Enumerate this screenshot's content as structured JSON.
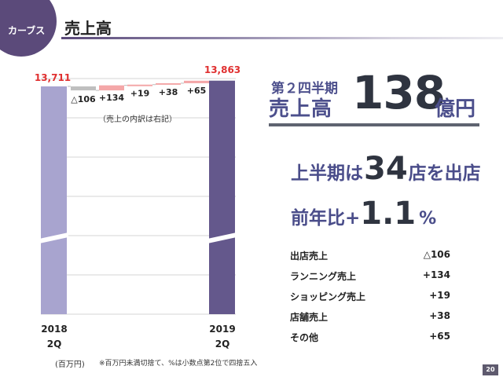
{
  "header": {
    "badge": "カーブス",
    "title": "売上高"
  },
  "chart_data": {
    "type": "bar",
    "subtype": "waterfall",
    "unit_note": "(百万円)",
    "footnote": "※百万円未満切捨て、%は小数点第2位で四捨五入",
    "inner_note": "（売上の内訳は右記）",
    "axis_break": true,
    "grid": true,
    "start": {
      "label_top": "2018",
      "label_bottom": "2Q",
      "value": 13711,
      "display": "13,711",
      "color": "#a8a4cf"
    },
    "end": {
      "label_top": "2019",
      "label_bottom": "2Q",
      "value": 13863,
      "display": "13,863",
      "color": "#64588c"
    },
    "steps": [
      {
        "label": "△106",
        "value": -106,
        "color": "#bfbfbf"
      },
      {
        "label": "+134",
        "value": 134,
        "color": "#f4a7a8"
      },
      {
        "label": "+19",
        "value": 19,
        "color": "#f4a7a8"
      },
      {
        "label": "+38",
        "value": 38,
        "color": "#f4a7a8"
      },
      {
        "label": "+65",
        "value": 65,
        "color": "#f4a7a8"
      }
    ],
    "accent_label_color": "#e03030"
  },
  "summary": {
    "quarter_label": "第２四半期",
    "sales_label": "売上高",
    "sales_value": "138",
    "sales_unit": "億円",
    "openings_prefix": "上半期は",
    "openings_number": "34",
    "openings_suffix": "店を出店",
    "yoy_prefix": "前年比+",
    "yoy_number": "1.1",
    "yoy_unit": "%"
  },
  "breakdown": [
    {
      "label": "出店売上",
      "value": "△106"
    },
    {
      "label": "ランニング売上",
      "value": "+134"
    },
    {
      "label": "ショッピング売上",
      "value": "+19"
    },
    {
      "label": "店舗売上",
      "value": "+38"
    },
    {
      "label": "その他",
      "value": "+65"
    }
  ],
  "page_number": "20"
}
